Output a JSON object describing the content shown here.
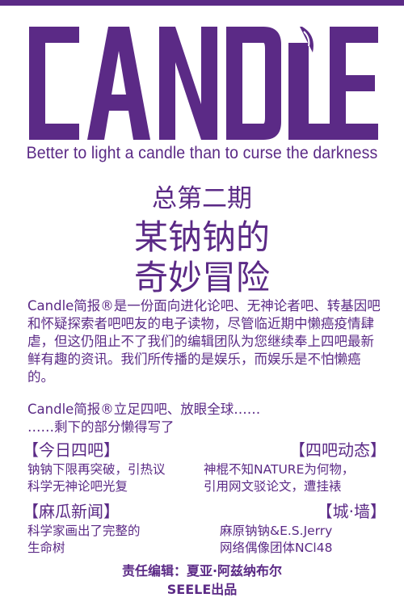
{
  "brand": {
    "logo_text": "CANDLE",
    "tagline": "Better to light a candle than to curse the darkness",
    "color": "#5b2a86"
  },
  "issue": {
    "number_label": "总第二期",
    "title_line1": "某钠钠的",
    "title_line2": "奇妙冒险"
  },
  "intro": "Candle简报®是一份面向进化论吧、无神论者吧、转基因吧和怀疑探索者吧吧友的电子读物，尽管临近期中懒癌疫情肆虐，但这仍阻止不了我们的编辑团队为您继续奉上四吧最新鲜有趣的资讯。我们所传播的是娱乐，而娱乐是不怕懒癌的。",
  "spread": {
    "line1": "Candle简报®立足四吧、放眼全球……",
    "line2": "……剩下的部分懒得写了"
  },
  "sections": {
    "today": {
      "heading": "【今日四吧】",
      "body": "钠钠下限再突破，引热议\n科学无神论吧光复"
    },
    "dynamics": {
      "heading": "【四吧动态】",
      "body": "神棍不知NATURE为何物，\n引用网文驳论文，遭挂裱"
    },
    "news": {
      "heading": "【麻瓜新闻】",
      "body": "科学家画出了完整的\n生命树"
    },
    "wall": {
      "heading": "【城·墙】",
      "body": "麻原钠钠&E.S.Jerry\n网络偶像团体NCl48"
    }
  },
  "footer": {
    "editor": "责任编辑：夏亚·阿兹纳布尔",
    "producer": "SEELE出品"
  }
}
